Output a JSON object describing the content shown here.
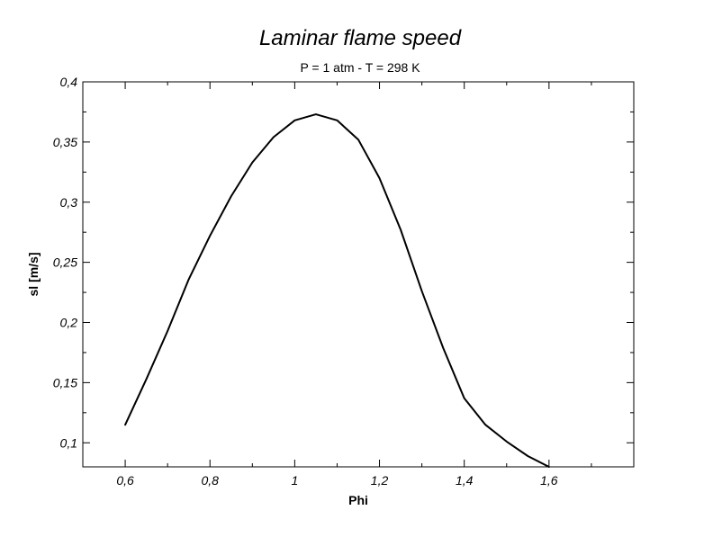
{
  "chart_data": {
    "type": "line",
    "title": "Laminar flame speed",
    "subtitle": "P = 1 atm - T = 298 K",
    "xlabel": "Phi",
    "ylabel": "sl [m/s]",
    "xlim": [
      0.5,
      1.8
    ],
    "ylim": [
      0.08,
      0.4
    ],
    "grid": false,
    "legend": "none",
    "x_ticks": [
      0.6,
      0.8,
      1,
      1.2,
      1.4,
      1.6
    ],
    "x_tick_labels": [
      "0,6",
      "0,8",
      "1",
      "1,2",
      "1,4",
      "1,6"
    ],
    "x_minor_ticks": [
      0.5,
      0.7,
      0.9,
      1.1,
      1.3,
      1.5,
      1.7
    ],
    "y_ticks": [
      0.1,
      0.15,
      0.2,
      0.25,
      0.3,
      0.35,
      0.4
    ],
    "y_tick_labels": [
      "0,1",
      "0,15",
      "0,2",
      "0,25",
      "0,3",
      "0,35",
      "0,4"
    ],
    "y_minor_ticks": [
      0.125,
      0.175,
      0.225,
      0.275,
      0.325,
      0.375
    ],
    "series": [
      {
        "color": "#000000",
        "x": [
          0.6,
          0.65,
          0.7,
          0.75,
          0.8,
          0.85,
          0.9,
          0.95,
          1.0,
          1.05,
          1.1,
          1.15,
          1.2,
          1.25,
          1.3,
          1.35,
          1.4,
          1.45,
          1.5,
          1.55,
          1.6
        ],
        "y": [
          0.115,
          0.153,
          0.193,
          0.236,
          0.272,
          0.305,
          0.333,
          0.354,
          0.368,
          0.373,
          0.368,
          0.352,
          0.32,
          0.277,
          0.226,
          0.179,
          0.137,
          0.115,
          0.101,
          0.089,
          0.08
        ]
      }
    ]
  }
}
